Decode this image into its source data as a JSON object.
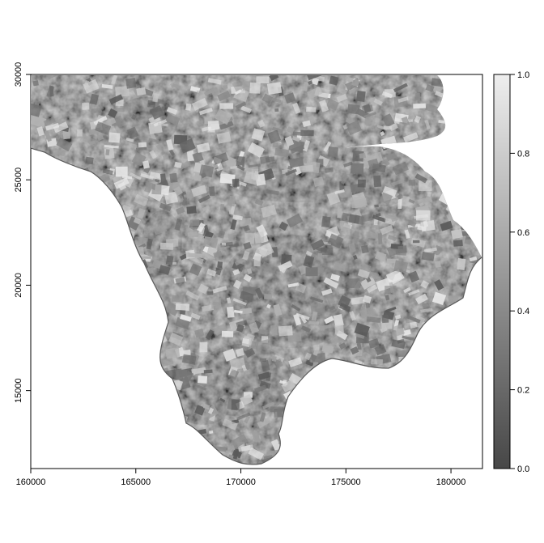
{
  "map": {
    "type": "raster",
    "palette": "grey",
    "x_ticks": [
      {
        "value": 160000,
        "label": "160000"
      },
      {
        "value": 165000,
        "label": "165000"
      },
      {
        "value": 170000,
        "label": "170000"
      },
      {
        "value": 175000,
        "label": "175000"
      },
      {
        "value": 180000,
        "label": "180000"
      }
    ],
    "y_ticks": [
      {
        "value": 15000,
        "label": "15000"
      },
      {
        "value": 20000,
        "label": "20000"
      },
      {
        "value": 25000,
        "label": "25000"
      },
      {
        "value": 30000,
        "label": "30000"
      }
    ],
    "x_range": [
      160000,
      181500
    ],
    "y_range": [
      11300,
      30000
    ],
    "colors": {
      "low": "#4a4a4a",
      "mid": "#8a8a8a",
      "high": "#ececec",
      "land_base": "#7d7d7d",
      "lowland": "#555555"
    }
  },
  "legend": {
    "min": 0.0,
    "max": 1.0,
    "ticks": [
      {
        "value": 0.0,
        "label": "0.0"
      },
      {
        "value": 0.2,
        "label": "0.2"
      },
      {
        "value": 0.4,
        "label": "0.4"
      },
      {
        "value": 0.6,
        "label": "0.6"
      },
      {
        "value": 0.8,
        "label": "0.8"
      },
      {
        "value": 1.0,
        "label": "1.0"
      }
    ]
  }
}
